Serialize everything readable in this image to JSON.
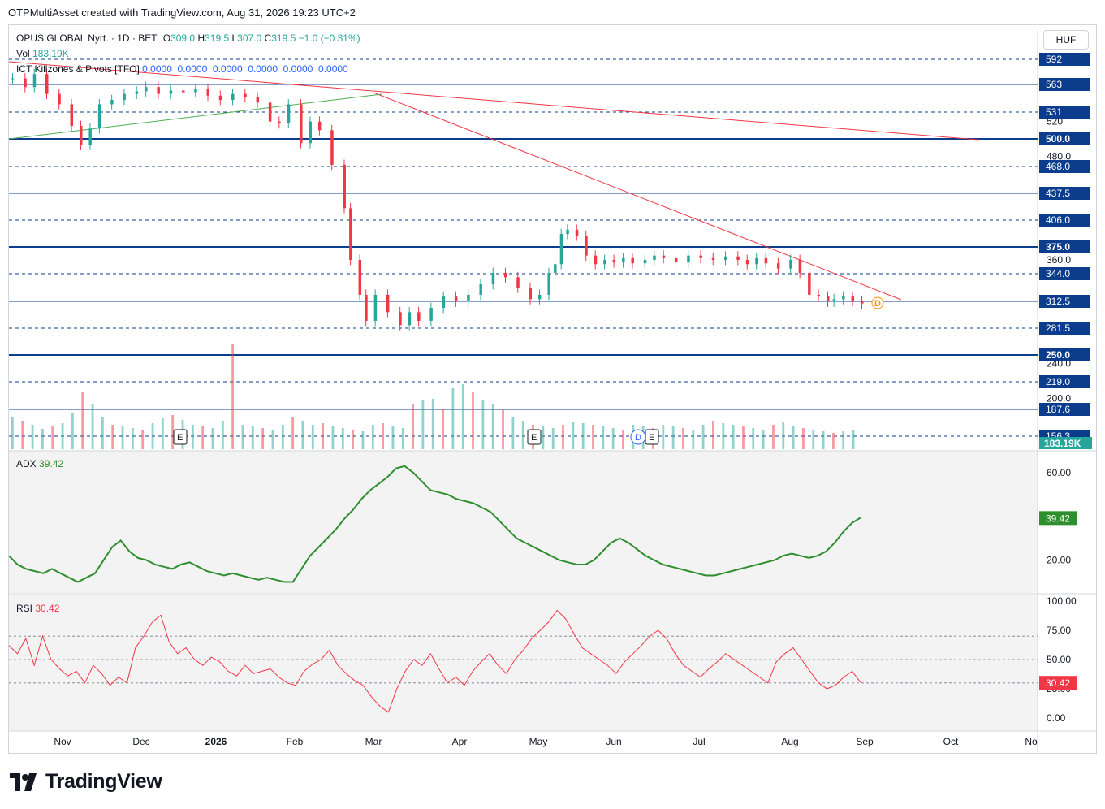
{
  "header": {
    "title": "OTPMultiAsset created with TradingView.com, Aug 31, 2026 19:23 UTC+2"
  },
  "legend": {
    "symbol": "OPUS GLOBAL Nyrt. · 1D · BET",
    "o_label": "O",
    "o_value": "309.0",
    "h_label": "H",
    "h_value": "319.5",
    "l_label": "L",
    "l_value": "307.0",
    "c_label": "C",
    "c_value": "319.5",
    "change": "−1.0 (−0.31%)",
    "vol_label": "Vol",
    "vol_value": "183.19K",
    "ict_label": "ICT Killzones & Pivots [TFO]",
    "ict_values": "0.0000  0.0000  0.0000  0.0000  0.0000  0.0000",
    "adx_label": "ADX",
    "adx_value": "39.42",
    "rsi_label": "RSI",
    "rsi_value": "30.42"
  },
  "currency": "HUF",
  "brand": {
    "name": "TradingView"
  },
  "colors": {
    "up": "#26a69a",
    "down": "#f23645",
    "level": "#0c3c8c",
    "adx": "#2f8f2f",
    "rsi": "#f23645",
    "trend_red": "#f23645",
    "trend_green": "#4caf50"
  },
  "chart_data": {
    "type": "candlestick",
    "price_axis": {
      "ticks": [
        "520",
        "480.0",
        "360.0",
        "240.0",
        "200.0"
      ],
      "levels": [
        {
          "label": "592",
          "value": 592,
          "style": "dashed"
        },
        {
          "label": "563",
          "value": 563,
          "style": "solid"
        },
        {
          "label": "531",
          "value": 531,
          "style": "dashed"
        },
        {
          "label": "500.0",
          "value": 500,
          "style": "solid-bold"
        },
        {
          "label": "468.0",
          "value": 468,
          "style": "dashed"
        },
        {
          "label": "437.5",
          "value": 437.5,
          "style": "solid"
        },
        {
          "label": "406.0",
          "value": 406,
          "style": "dashed"
        },
        {
          "label": "375.0",
          "value": 375,
          "style": "solid-bold"
        },
        {
          "label": "344.0",
          "value": 344,
          "style": "dashed"
        },
        {
          "label": "312.5",
          "value": 312.5,
          "style": "solid"
        },
        {
          "label": "281.5",
          "value": 281.5,
          "style": "dashed"
        },
        {
          "label": "250.0",
          "value": 250,
          "style": "solid-bold"
        },
        {
          "label": "219.0",
          "value": 219,
          "style": "dashed"
        },
        {
          "label": "187.6",
          "value": 187.6,
          "style": "solid"
        },
        {
          "label": "156.3",
          "value": 156.3,
          "style": "dashed"
        }
      ],
      "volume_label": "183.19K"
    },
    "x_axis": {
      "labels": [
        "Nov",
        "Dec",
        "2026",
        "Feb",
        "Mar",
        "Apr",
        "May",
        "Jun",
        "Jul",
        "Aug",
        "Sep",
        "Oct",
        "No"
      ]
    },
    "markers": [
      "E",
      "E",
      "D",
      "E",
      "D"
    ],
    "price_path": [
      [
        0,
        570
      ],
      [
        8,
        560
      ],
      [
        14,
        575
      ],
      [
        22,
        552
      ],
      [
        30,
        540
      ],
      [
        38,
        515
      ],
      [
        44,
        493
      ],
      [
        50,
        512
      ],
      [
        56,
        540
      ],
      [
        64,
        545
      ],
      [
        72,
        552
      ],
      [
        80,
        555
      ],
      [
        86,
        560
      ],
      [
        94,
        552
      ],
      [
        102,
        556
      ],
      [
        110,
        554
      ],
      [
        118,
        558
      ],
      [
        126,
        550
      ],
      [
        134,
        545
      ],
      [
        142,
        552
      ],
      [
        150,
        548
      ],
      [
        158,
        542
      ],
      [
        166,
        520
      ],
      [
        172,
        518
      ],
      [
        178,
        540
      ],
      [
        186,
        495
      ],
      [
        192,
        520
      ],
      [
        198,
        510
      ],
      [
        206,
        470
      ],
      [
        214,
        420
      ],
      [
        218,
        360
      ],
      [
        224,
        320
      ],
      [
        228,
        290
      ],
      [
        234,
        320
      ],
      [
        242,
        300
      ],
      [
        250,
        285
      ],
      [
        256,
        300
      ],
      [
        262,
        290
      ],
      [
        270,
        305
      ],
      [
        278,
        318
      ],
      [
        286,
        312
      ],
      [
        294,
        320
      ],
      [
        302,
        332
      ],
      [
        310,
        345
      ],
      [
        318,
        340
      ],
      [
        326,
        328
      ],
      [
        334,
        315
      ],
      [
        340,
        320
      ],
      [
        346,
        345
      ],
      [
        350,
        355
      ],
      [
        354,
        390
      ],
      [
        358,
        395
      ],
      [
        364,
        388
      ],
      [
        370,
        365
      ],
      [
        376,
        355
      ],
      [
        382,
        360
      ],
      [
        388,
        357
      ],
      [
        394,
        362
      ],
      [
        400,
        356
      ],
      [
        408,
        360
      ],
      [
        414,
        365
      ],
      [
        420,
        362
      ],
      [
        428,
        357
      ],
      [
        436,
        365
      ],
      [
        444,
        362
      ],
      [
        452,
        360
      ],
      [
        460,
        364
      ],
      [
        468,
        360
      ],
      [
        474,
        355
      ],
      [
        480,
        362
      ],
      [
        486,
        356
      ],
      [
        494,
        350
      ],
      [
        502,
        360
      ],
      [
        508,
        345
      ],
      [
        514,
        320
      ],
      [
        520,
        318
      ],
      [
        526,
        312
      ],
      [
        530,
        315
      ],
      [
        536,
        318
      ],
      [
        542,
        313
      ],
      [
        548,
        310
      ]
    ],
    "volume_values": [
      40,
      35,
      30,
      25,
      28,
      32,
      45,
      70,
      55,
      40,
      30,
      28,
      26,
      24,
      32,
      38,
      42,
      36,
      30,
      28,
      26,
      35,
      130,
      30,
      28,
      26,
      24,
      30,
      40,
      35,
      30,
      32,
      28,
      26,
      24,
      22,
      30,
      32,
      28,
      26,
      55,
      60,
      62,
      50,
      75,
      80,
      70,
      60,
      55,
      48,
      40,
      35,
      30,
      28,
      26,
      30,
      34,
      32,
      30,
      28,
      26,
      24,
      30,
      28,
      26,
      30,
      28,
      26,
      24,
      30,
      35,
      32,
      30,
      28,
      26,
      24,
      30,
      34,
      28,
      26,
      24,
      22,
      20,
      22,
      24
    ],
    "adx": [
      22,
      18,
      16,
      15,
      14,
      16,
      14,
      12,
      10,
      12,
      14,
      20,
      26,
      29,
      24,
      21,
      20,
      18,
      17,
      16,
      18,
      19,
      17,
      15,
      14,
      13,
      14,
      13,
      12,
      11,
      12,
      11,
      10,
      10,
      16,
      22,
      26,
      30,
      34,
      39,
      43,
      48,
      52,
      55,
      58,
      62,
      63,
      60,
      56,
      52,
      51,
      50,
      48,
      47,
      46,
      44,
      42,
      38,
      34,
      30,
      28,
      26,
      24,
      22,
      20,
      19,
      18,
      18,
      20,
      24,
      28,
      30,
      28,
      25,
      22,
      20,
      18,
      17,
      16,
      15,
      14,
      13,
      13,
      14,
      15,
      16,
      17,
      18,
      19,
      20,
      22,
      23,
      22,
      21,
      22,
      24,
      28,
      33,
      37,
      39.42
    ],
    "rsi": [
      62,
      55,
      68,
      45,
      70,
      50,
      42,
      36,
      40,
      30,
      45,
      38,
      28,
      35,
      30,
      60,
      70,
      82,
      88,
      65,
      55,
      60,
      50,
      45,
      52,
      48,
      40,
      36,
      45,
      38,
      40,
      42,
      35,
      30,
      28,
      40,
      46,
      50,
      58,
      45,
      38,
      32,
      28,
      18,
      10,
      5,
      25,
      40,
      50,
      45,
      55,
      42,
      30,
      35,
      28,
      40,
      48,
      55,
      45,
      38,
      50,
      58,
      68,
      75,
      82,
      92,
      85,
      72,
      60,
      55,
      50,
      45,
      38,
      48,
      55,
      62,
      70,
      75,
      68,
      55,
      45,
      40,
      35,
      42,
      48,
      55,
      50,
      45,
      40,
      35,
      30,
      48,
      55,
      60,
      50,
      40,
      30,
      25,
      28,
      35,
      40,
      30.42
    ]
  }
}
